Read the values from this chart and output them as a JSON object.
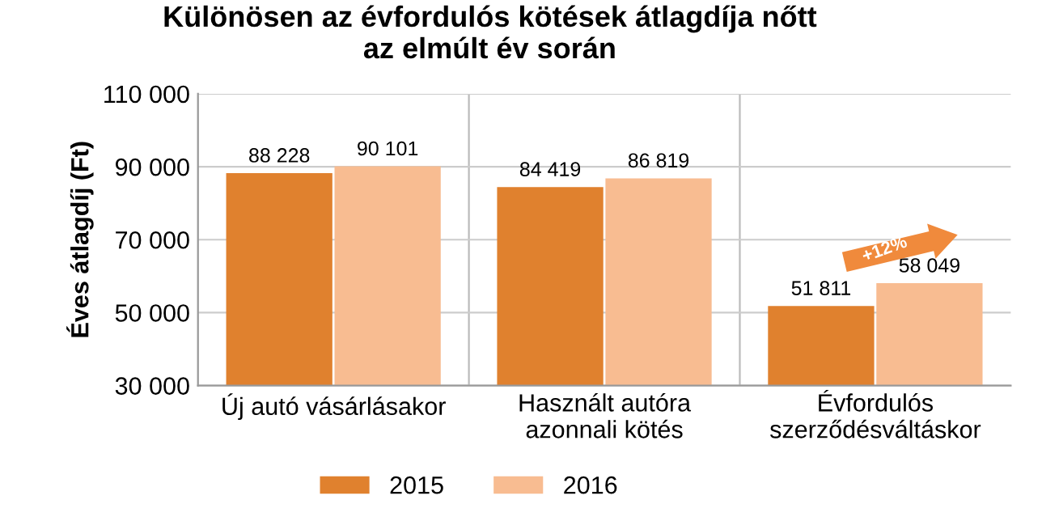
{
  "chart_data": {
    "type": "bar",
    "title": "Különösen az évfordulós kötések átlagdíja nőtt\naz elmúlt év során",
    "ylabel": "Éves átlagdíj (Ft)",
    "categories": [
      "Új autó vásárlásakor",
      "Használt autóra\nazonnali kötés",
      "Évfordulós\nszerződésváltáskor"
    ],
    "series": [
      {
        "name": "2015",
        "color": "#e0812e",
        "values": [
          88228,
          84419,
          51811
        ],
        "value_labels": [
          "88 228",
          "84 419",
          "51 811"
        ]
      },
      {
        "name": "2016",
        "color": "#f8bc91",
        "values": [
          90101,
          86819,
          58049
        ],
        "value_labels": [
          "90 101",
          "86 819",
          "58 049"
        ]
      }
    ],
    "ylim": [
      30000,
      110000
    ],
    "yticks": [
      {
        "value": 30000,
        "label": "30 000"
      },
      {
        "value": 50000,
        "label": "50 000"
      },
      {
        "value": 70000,
        "label": "70 000"
      },
      {
        "value": 90000,
        "label": "90 000"
      },
      {
        "value": 110000,
        "label": "110 000"
      }
    ],
    "grid": "y",
    "legend": "bottom",
    "annotations": [
      "+12%"
    ]
  }
}
